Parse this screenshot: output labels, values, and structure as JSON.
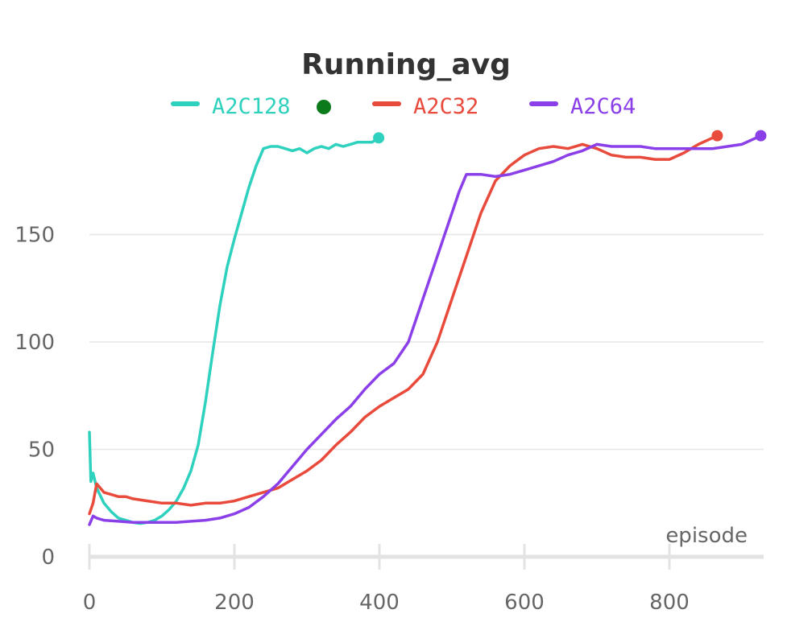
{
  "chart_data": {
    "type": "line",
    "title": "Running_avg",
    "xlabel": "episode",
    "ylabel": "",
    "xlim": [
      0,
      930
    ],
    "ylim": [
      0,
      200
    ],
    "xticks": [
      0,
      200,
      400,
      600,
      800
    ],
    "yticks": [
      0,
      50,
      100,
      150
    ],
    "grid": true,
    "legend_position": "top",
    "legend_extra_marker": {
      "series": "A2C128",
      "color": "#0a7a1a"
    },
    "series": [
      {
        "name": "A2C128",
        "color": "#2ed1bd",
        "x": [
          0,
          2,
          5,
          10,
          20,
          30,
          40,
          50,
          60,
          70,
          80,
          90,
          100,
          110,
          120,
          130,
          140,
          150,
          160,
          170,
          180,
          190,
          200,
          210,
          220,
          230,
          240,
          250,
          260,
          270,
          280,
          290,
          300,
          310,
          320,
          330,
          340,
          350,
          360,
          370,
          380,
          390,
          399
        ],
        "y": [
          58,
          35,
          39,
          32,
          25,
          21,
          18,
          17,
          16,
          15.5,
          16,
          17,
          19,
          22,
          26,
          32,
          40,
          52,
          72,
          95,
          117,
          135,
          148,
          160,
          172,
          182,
          190,
          191,
          191,
          190,
          189,
          190,
          188,
          190,
          191,
          190,
          192,
          191,
          192,
          193,
          193,
          193,
          195
        ]
      },
      {
        "name": "A2C32",
        "color": "#e84a3c",
        "x": [
          0,
          5,
          10,
          20,
          30,
          40,
          50,
          60,
          80,
          100,
          120,
          140,
          160,
          180,
          200,
          220,
          240,
          260,
          280,
          300,
          320,
          340,
          360,
          380,
          400,
          420,
          440,
          460,
          480,
          500,
          520,
          540,
          560,
          580,
          600,
          620,
          640,
          660,
          680,
          700,
          720,
          740,
          760,
          780,
          800,
          820,
          840,
          866
        ],
        "y": [
          20,
          25,
          34,
          30,
          29,
          28,
          28,
          27,
          26,
          25,
          25,
          24,
          25,
          25,
          26,
          28,
          30,
          32,
          36,
          40,
          45,
          52,
          58,
          65,
          70,
          74,
          78,
          85,
          100,
          120,
          140,
          160,
          175,
          182,
          187,
          190,
          191,
          190,
          192,
          190,
          187,
          186,
          186,
          185,
          185,
          188,
          192,
          196
        ]
      },
      {
        "name": "A2C64",
        "color": "#8a3fe8",
        "x": [
          0,
          5,
          10,
          20,
          40,
          60,
          80,
          100,
          120,
          140,
          160,
          180,
          200,
          220,
          240,
          260,
          280,
          300,
          320,
          340,
          360,
          380,
          400,
          420,
          440,
          460,
          480,
          500,
          510,
          520,
          540,
          560,
          580,
          600,
          620,
          640,
          660,
          680,
          700,
          720,
          740,
          760,
          780,
          800,
          820,
          840,
          860,
          880,
          900,
          926
        ],
        "y": [
          15,
          19,
          18,
          17,
          16.5,
          16,
          16,
          16,
          16,
          16.5,
          17,
          18,
          20,
          23,
          28,
          34,
          42,
          50,
          57,
          64,
          70,
          78,
          85,
          90,
          100,
          120,
          140,
          160,
          170,
          178,
          178,
          177,
          178,
          180,
          182,
          184,
          187,
          189,
          192,
          191,
          191,
          191,
          190,
          190,
          190,
          190,
          190,
          191,
          192,
          196
        ]
      }
    ]
  }
}
